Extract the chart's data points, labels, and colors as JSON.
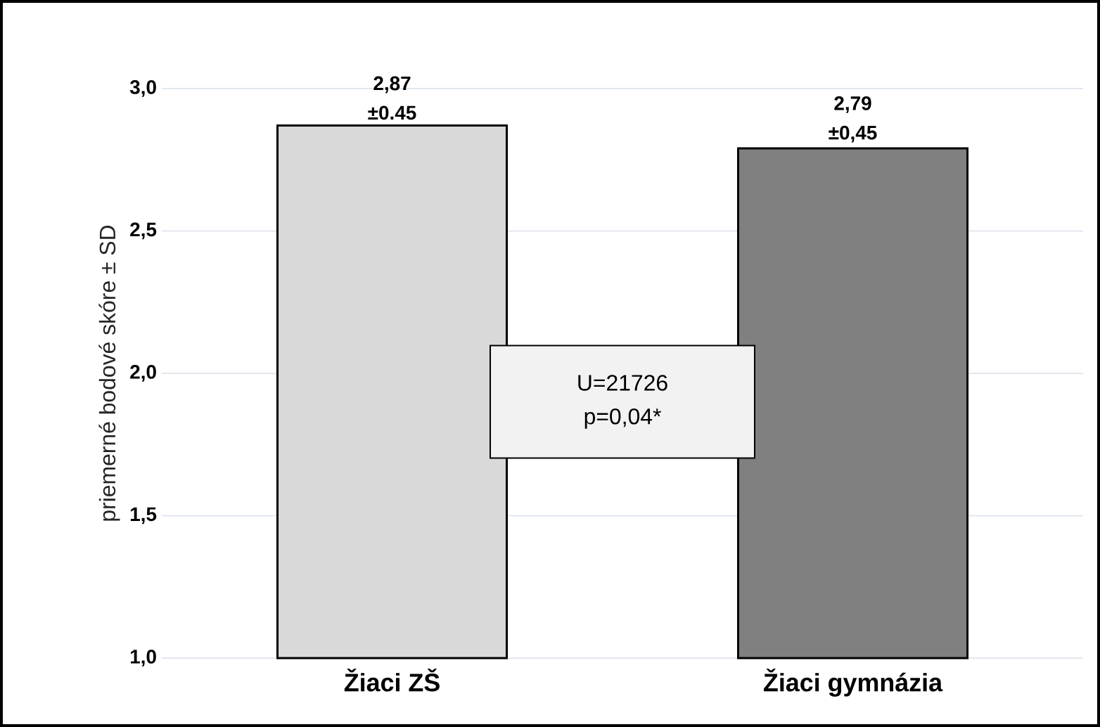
{
  "chart_data": {
    "type": "bar",
    "ylabel": "priemerné bodové skóre ± SD",
    "categories": [
      "Žiaci ZŠ",
      "Žiaci gymnázia"
    ],
    "values": [
      2.87,
      2.79
    ],
    "colors": [
      "#d9d9d9",
      "#808080"
    ],
    "value_labels": [
      "2,87 ±0.45",
      "2,79 ±0,45"
    ],
    "annotations": [
      "U=21726 p=0,04*"
    ],
    "ylim": [
      1.0,
      3.0
    ],
    "yticks": [
      {
        "value": 1.0,
        "label": "1,0"
      },
      {
        "value": 1.5,
        "label": "1,5"
      },
      {
        "value": 2.0,
        "label": "2,0"
      },
      {
        "value": 2.5,
        "label": "2,5"
      },
      {
        "value": 3.0,
        "label": "3,0"
      }
    ],
    "grid": "y"
  }
}
